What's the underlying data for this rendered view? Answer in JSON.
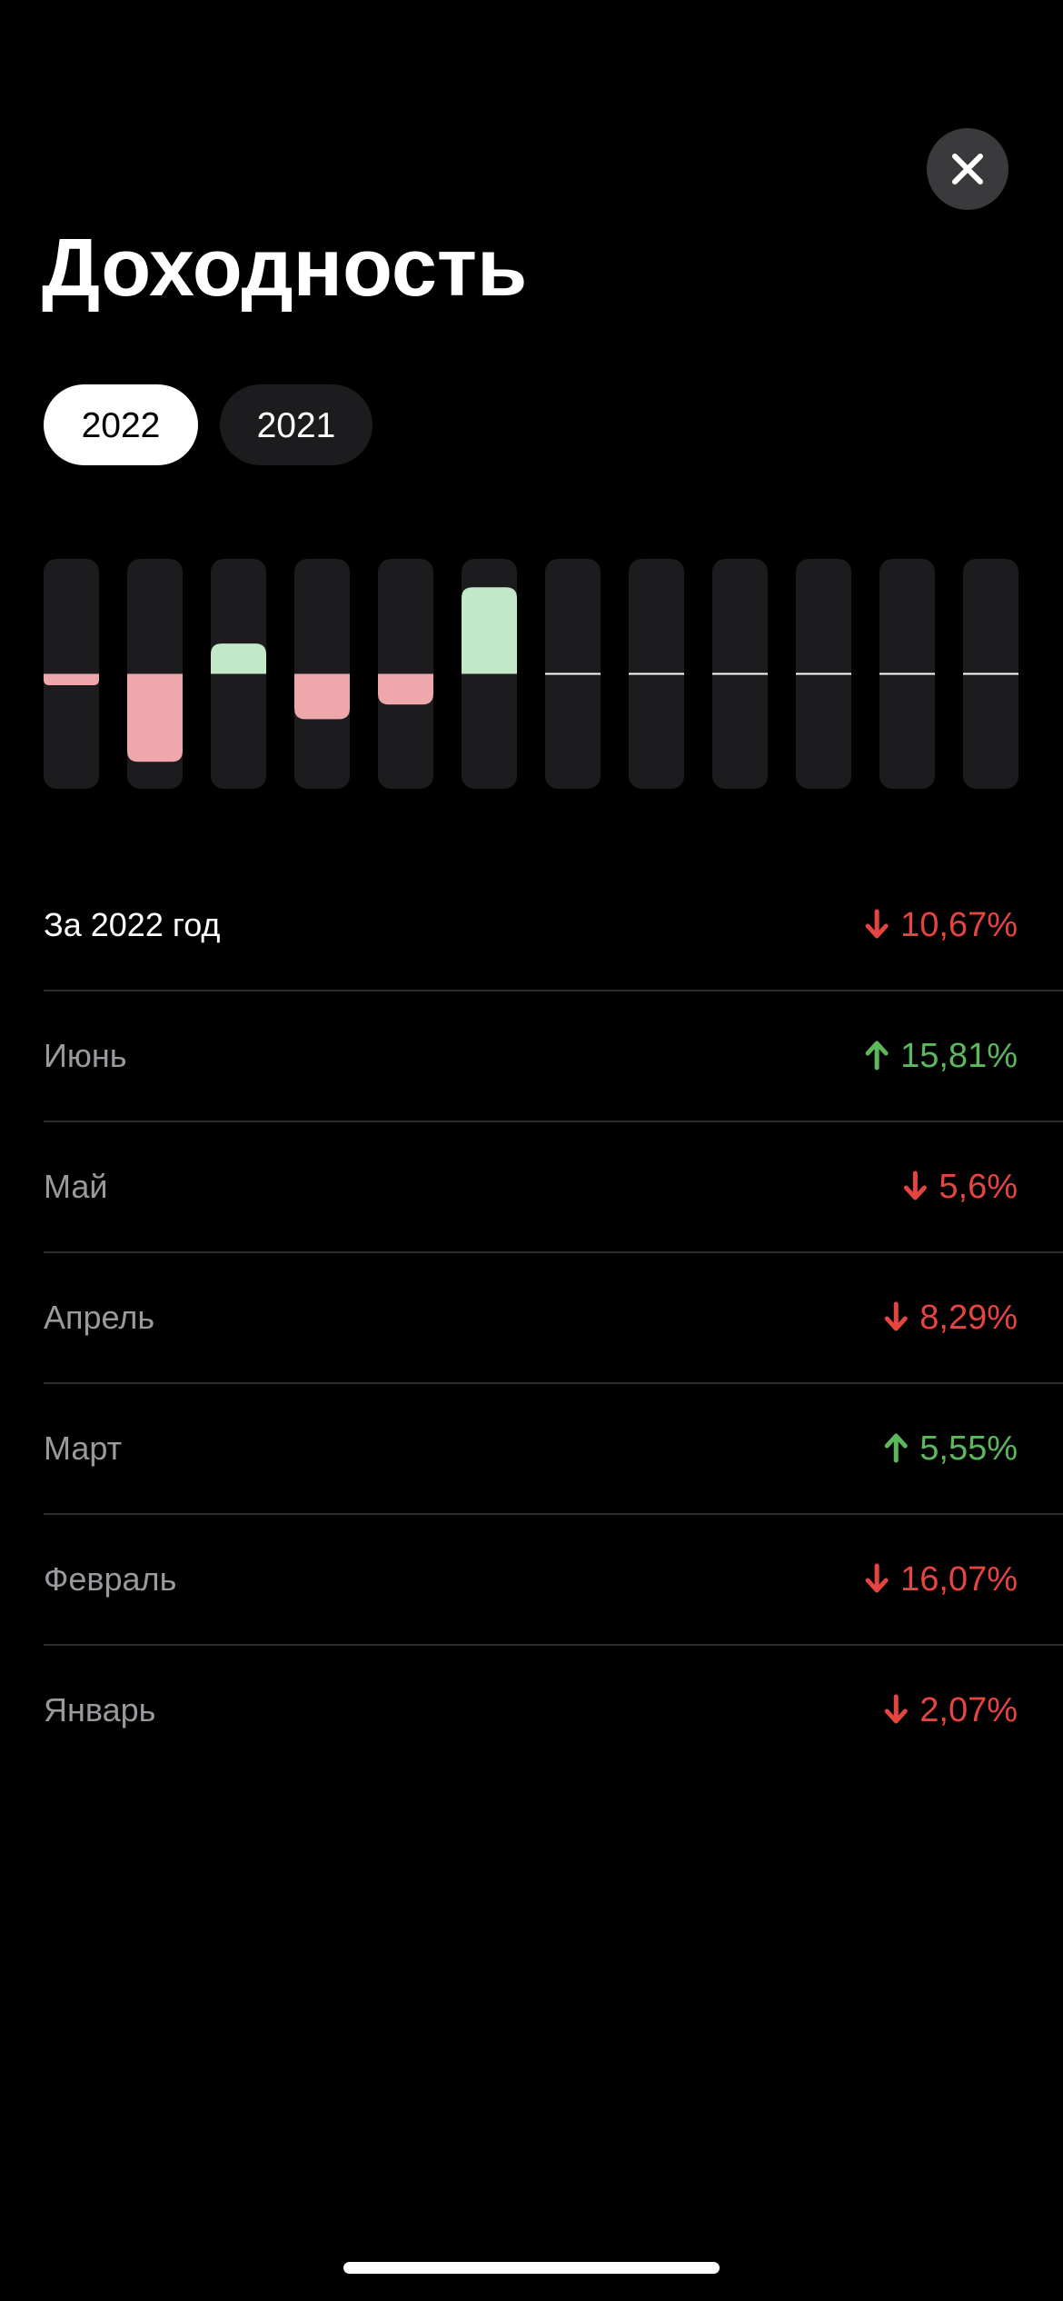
{
  "header": {
    "title": "Доходность"
  },
  "tabs": [
    {
      "label": "2022",
      "selected": true
    },
    {
      "label": "2021",
      "selected": false
    }
  ],
  "chart_data": {
    "type": "bar",
    "values": [
      -2.07,
      -16.07,
      5.55,
      -8.29,
      -5.6,
      15.81,
      null,
      null,
      null,
      null,
      null,
      null
    ],
    "ylim": [
      -21,
      21
    ],
    "positive_color": "#c3e8c7",
    "negative_color": "#eea8ab"
  },
  "list": {
    "summary": {
      "label": "За 2022 год",
      "value": -10.67,
      "value_label": "10,67%"
    },
    "months": [
      {
        "label": "Июнь",
        "value": 15.81,
        "value_label": "15,81%"
      },
      {
        "label": "Май",
        "value": -5.6,
        "value_label": "5,6%"
      },
      {
        "label": "Апрель",
        "value": -8.29,
        "value_label": "8,29%"
      },
      {
        "label": "Март",
        "value": 5.55,
        "value_label": "5,55%"
      },
      {
        "label": "Февраль",
        "value": -16.07,
        "value_label": "16,07%"
      },
      {
        "label": "Январь",
        "value": -2.07,
        "value_label": "2,07%"
      }
    ],
    "up_color": "#5cb85c",
    "down_color": "#e5453f"
  }
}
